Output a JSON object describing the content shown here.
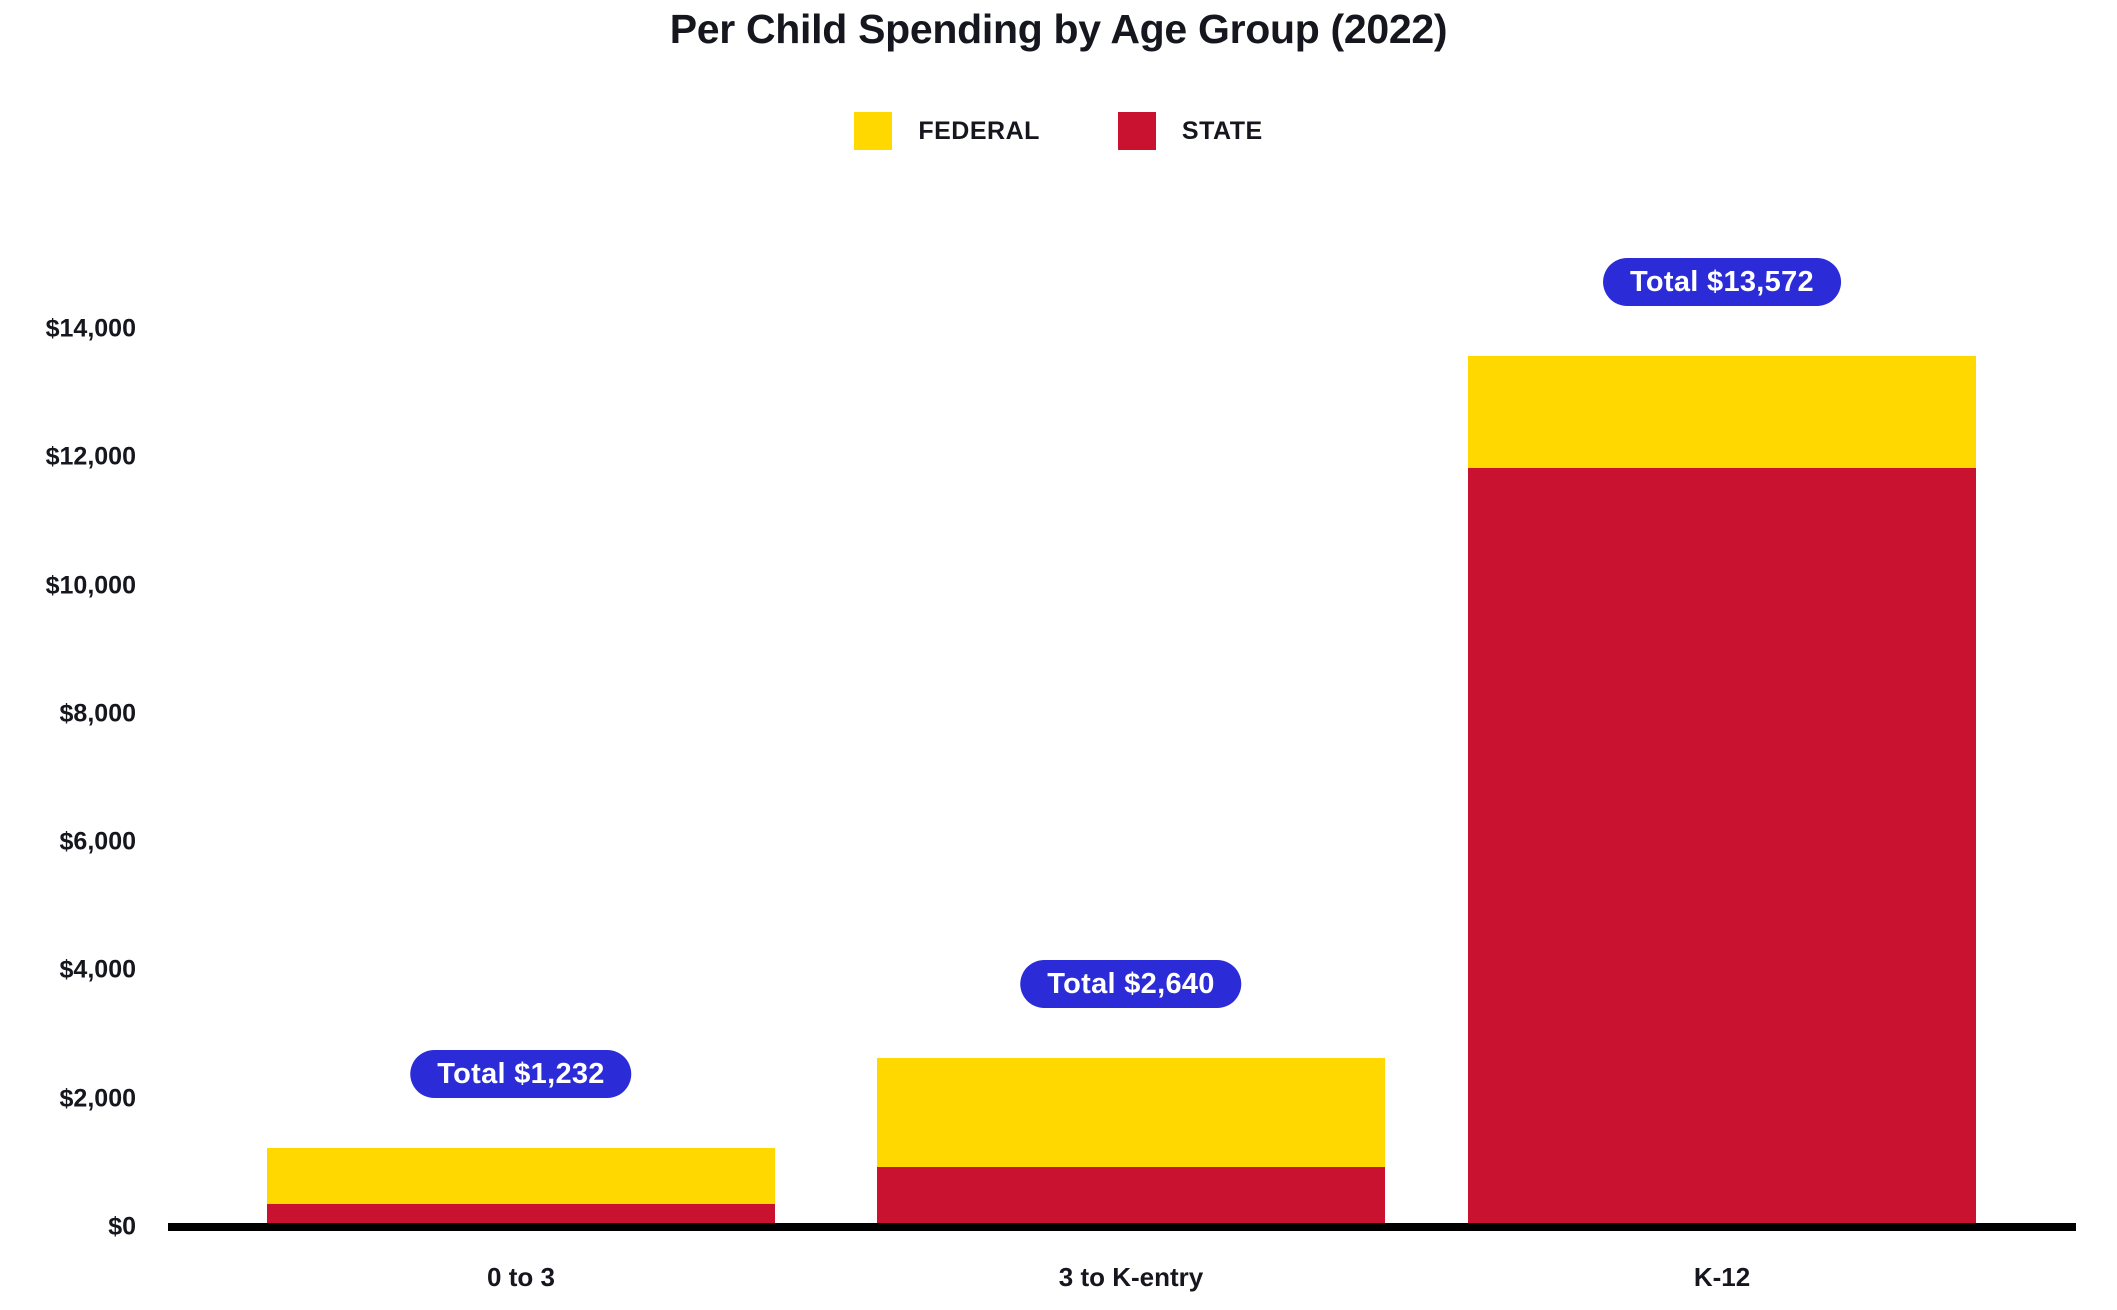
{
  "title": "Per Child Spending by Age Group (2022)",
  "colors": {
    "federal": "#FFD800",
    "state": "#C9122F",
    "total_badge": "#2B2BD8",
    "badge_text": "#FFFFFF",
    "text": "#16161E",
    "axis": "#000000",
    "background": "#FFFFFF"
  },
  "chart_data": {
    "type": "bar",
    "stacked": true,
    "title": "Per Child Spending by Age Group (2022)",
    "categories": [
      "0 to 3",
      "3 to K-entry",
      "K-12"
    ],
    "series": [
      {
        "name": "FEDERAL",
        "color": "#FFD800",
        "values": [
          880,
          1710,
          1740
        ]
      },
      {
        "name": "STATE",
        "color": "#C9122F",
        "values": [
          352,
          930,
          11832
        ]
      }
    ],
    "stack_order_bottom_to_top": [
      "STATE",
      "FEDERAL"
    ],
    "totals": [
      1232,
      2640,
      13572
    ],
    "total_labels": [
      "Total $1,232",
      "Total $2,640",
      "Total $13,572"
    ],
    "xlabel": "",
    "ylabel": "",
    "ylim": [
      0,
      14000
    ],
    "y_ticks": [
      {
        "value": 0,
        "label": "$0"
      },
      {
        "value": 2000,
        "label": "$2,000"
      },
      {
        "value": 4000,
        "label": "$4,000"
      },
      {
        "value": 6000,
        "label": "$6,000"
      },
      {
        "value": 8000,
        "label": "$8,000"
      },
      {
        "value": 10000,
        "label": "$10,000"
      },
      {
        "value": 12000,
        "label": "$12,000"
      },
      {
        "value": 14000,
        "label": "$14,000"
      }
    ],
    "grid": false,
    "legend_position": "top"
  }
}
